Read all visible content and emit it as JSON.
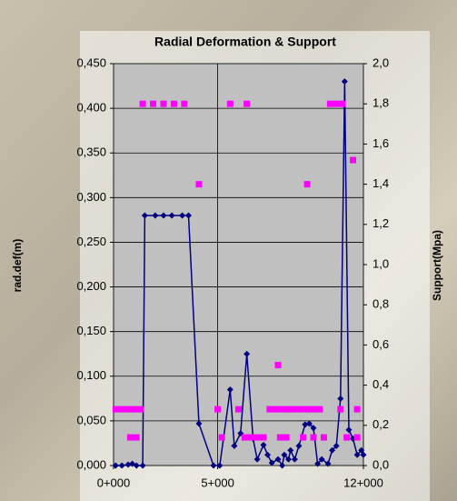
{
  "chart_data": {
    "type": "line",
    "title": "Radial Deformation & Support",
    "y_label": "rad.def(m)",
    "y2_label": "Support(Mpa)",
    "xlim": [
      0,
      12000
    ],
    "xticks": [
      {
        "value": 0,
        "label": "0+000"
      },
      {
        "value": 5000,
        "label": "5+000"
      },
      {
        "value": 12000,
        "label": "12+000"
      }
    ],
    "ylim": [
      0,
      0.45
    ],
    "yticks": [
      {
        "value": 0,
        "label": "0,000"
      },
      {
        "value": 0.05,
        "label": "0,050"
      },
      {
        "value": 0.1,
        "label": "0,100"
      },
      {
        "value": 0.15,
        "label": "0,150"
      },
      {
        "value": 0.2,
        "label": "0,200"
      },
      {
        "value": 0.25,
        "label": "0,250"
      },
      {
        "value": 0.3,
        "label": "0,300"
      },
      {
        "value": 0.35,
        "label": "0,350"
      },
      {
        "value": 0.4,
        "label": "0,400"
      },
      {
        "value": 0.45,
        "label": "0,450"
      }
    ],
    "y2lim": [
      0,
      2
    ],
    "y2ticks": [
      {
        "value": 0,
        "label": "0,0"
      },
      {
        "value": 0.2,
        "label": "0,2"
      },
      {
        "value": 0.4,
        "label": "0,4"
      },
      {
        "value": 0.6,
        "label": "0,6"
      },
      {
        "value": 0.8,
        "label": "0,8"
      },
      {
        "value": 1,
        "label": "1,0"
      },
      {
        "value": 1.2,
        "label": "1,2"
      },
      {
        "value": 1.4,
        "label": "1,4"
      },
      {
        "value": 1.6,
        "label": "1,6"
      },
      {
        "value": 1.8,
        "label": "1,8"
      },
      {
        "value": 2,
        "label": "2,0"
      }
    ],
    "grid": true,
    "series": [
      {
        "type": "line",
        "axis": "y",
        "color": "#000080",
        "x": [
          100,
          400,
          700,
          900,
          1100,
          1400,
          1500,
          2000,
          2400,
          2800,
          3300,
          3600,
          4100,
          4800,
          5100,
          5600,
          5800,
          6100,
          6400,
          6700,
          6900,
          7200,
          7400,
          7600,
          7900,
          8100,
          8200,
          8400,
          8500,
          8700,
          8900,
          9200,
          9400,
          9600,
          9800,
          10000,
          10300,
          10500,
          10700,
          10900,
          11100,
          11300,
          11500,
          11700,
          11900,
          12000
        ],
        "values": [
          0,
          0,
          0.001,
          0.002,
          0,
          0,
          0.28,
          0.28,
          0.28,
          0.28,
          0.28,
          0.28,
          0.047,
          0,
          0,
          0.085,
          0.022,
          0.036,
          0.125,
          0.03,
          0.007,
          0.023,
          0.012,
          0.003,
          0.007,
          0,
          0.012,
          0.007,
          0.017,
          0.007,
          0.022,
          0.046,
          0.047,
          0.042,
          0.002,
          0.007,
          0.002,
          0.017,
          0.022,
          0.075,
          0.43,
          0.04,
          0.03,
          0.012,
          0.017,
          0.012
        ]
      },
      {
        "type": "scatter",
        "axis": "y2",
        "color": "#ff00ff",
        "x": [
          1400,
          1900,
          2400,
          2900,
          3400,
          5600,
          6400,
          10400,
          10700,
          11000,
          4100,
          9300,
          11500,
          7900,
          100,
          400,
          700,
          1000,
          1300,
          5000,
          6000,
          7500,
          7800,
          8100,
          8400,
          8700,
          9000,
          9300,
          9600,
          9900,
          10900,
          11700,
          800,
          1100,
          5200,
          6300,
          6600,
          6900,
          7200,
          8000,
          8300,
          9100,
          9600,
          10100,
          11200,
          11700
        ],
        "values": [
          1.8,
          1.8,
          1.8,
          1.8,
          1.8,
          1.8,
          1.8,
          1.8,
          1.8,
          1.8,
          1.4,
          1.4,
          1.52,
          0.5,
          0.28,
          0.28,
          0.28,
          0.28,
          0.28,
          0.28,
          0.28,
          0.28,
          0.28,
          0.28,
          0.28,
          0.28,
          0.28,
          0.28,
          0.28,
          0.28,
          0.28,
          0.28,
          0.14,
          0.14,
          0.14,
          0.14,
          0.14,
          0.14,
          0.14,
          0.14,
          0.14,
          0.14,
          0.14,
          0.14,
          0.14,
          0.14
        ]
      }
    ]
  }
}
